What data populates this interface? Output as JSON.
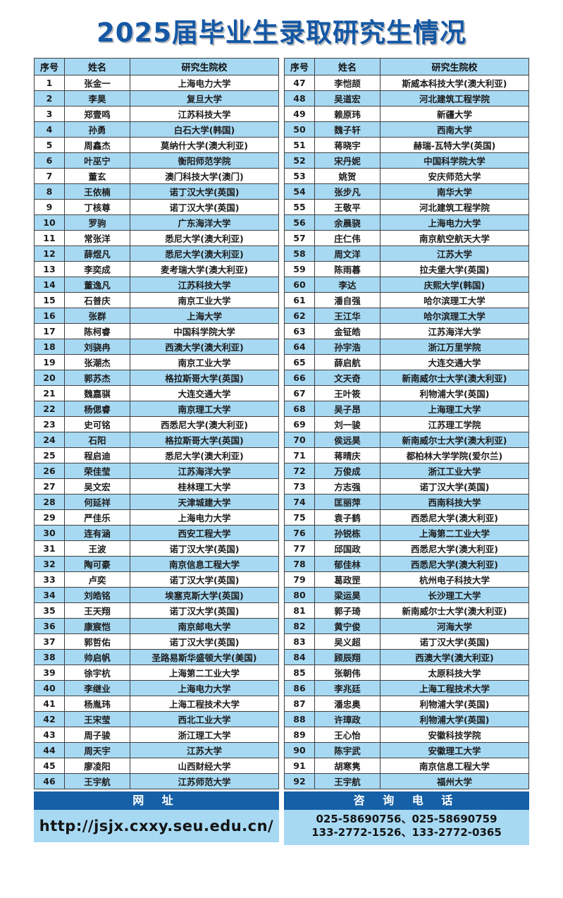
{
  "title": "2025届毕业生录取研究生情况",
  "table_columns": [
    "序号",
    "姓名",
    "研究生院校"
  ],
  "left_table_rows": [
    [
      "1",
      "张金一",
      "上海电力大学"
    ],
    [
      "2",
      "李昊",
      "复旦大学"
    ],
    [
      "3",
      "郑壹鸣",
      "江苏科技大学"
    ],
    [
      "4",
      "孙勇",
      "白石大学(韩国)"
    ],
    [
      "5",
      "周鑫杰",
      "莫纳什大学(澳大利亚)"
    ],
    [
      "6",
      "叶巫宁",
      "衡阳师范学院"
    ],
    [
      "7",
      "董玄",
      "澳门科技大学(澳门)"
    ],
    [
      "8",
      "王依楠",
      "诺丁汉大学(英国)"
    ],
    [
      "9",
      "丁核尊",
      "诺丁汉大学(英国)"
    ],
    [
      "10",
      "罗驹",
      "广东海洋大学"
    ],
    [
      "11",
      "常张洋",
      "悉尼大学(澳大利亚)"
    ],
    [
      "12",
      "薛煜凡",
      "悉尼大学(澳大利亚)"
    ],
    [
      "13",
      "李奕成",
      "麦考瑞大学(澳大利亚)"
    ],
    [
      "14",
      "董逸凡",
      "江苏科技大学"
    ],
    [
      "15",
      "石普庆",
      "南京工业大学"
    ],
    [
      "16",
      "张群",
      "上海大学"
    ],
    [
      "17",
      "陈柯睿",
      "中国科学院大学"
    ],
    [
      "18",
      "刘骁冉",
      "西澳大学(澳大利亚)"
    ],
    [
      "19",
      "张潮杰",
      "南京工业大学"
    ],
    [
      "20",
      "郭苏杰",
      "格拉斯哥大学(英国)"
    ],
    [
      "21",
      "魏嘉骐",
      "大连交通大学"
    ],
    [
      "22",
      "杨偲睿",
      "南京理工大学"
    ],
    [
      "23",
      "史可铭",
      "西悉尼大学(澳大利亚)"
    ],
    [
      "24",
      "石阳",
      "格拉斯哥大学(英国)"
    ],
    [
      "25",
      "程启迪",
      "悉尼大学(澳大利亚)"
    ],
    [
      "26",
      "荣佳莹",
      "江苏海洋大学"
    ],
    [
      "27",
      "吴文宏",
      "桂林理工大学"
    ],
    [
      "28",
      "何延祥",
      "天津城建大学"
    ],
    [
      "29",
      "严佳乐",
      "上海电力大学"
    ],
    [
      "30",
      "连有涵",
      "西安工程大学"
    ],
    [
      "31",
      "王波",
      "诺丁汉大学(英国)"
    ],
    [
      "32",
      "陶可豪",
      "南京信息工程大学"
    ],
    [
      "33",
      "卢奕",
      "诺丁汉大学(英国)"
    ],
    [
      "34",
      "刘皓铭",
      "埃塞克斯大学(英国)"
    ],
    [
      "35",
      "王天翔",
      "诺丁汉大学(英国)"
    ],
    [
      "36",
      "康宸恺",
      "南京邮电大学"
    ],
    [
      "37",
      "郭哲佑",
      "诺丁汉大学(英国)"
    ],
    [
      "38",
      "帅启帆",
      "圣路易斯华盛顿大学(美国)"
    ],
    [
      "39",
      "徐宇杭",
      "上海第二工业大学"
    ],
    [
      "40",
      "李继业",
      "上海电力大学"
    ],
    [
      "41",
      "杨胤玮",
      "上海工程技术大学"
    ],
    [
      "42",
      "王宋莹",
      "西北工业大学"
    ],
    [
      "43",
      "周子骏",
      "浙江理工大学"
    ],
    [
      "44",
      "周天宇",
      "江苏大学"
    ],
    [
      "45",
      "廖凌阳",
      "山西财经大学"
    ],
    [
      "46",
      "王宇航",
      "江苏师范大学"
    ]
  ],
  "right_table_rows": [
    [
      "47",
      "李恺颉",
      "斯威本科技大学(澳大利亚)"
    ],
    [
      "48",
      "吴道宏",
      "河北建筑工程学院"
    ],
    [
      "49",
      "赖原玮",
      "新疆大学"
    ],
    [
      "50",
      "魏子轩",
      "西南大学"
    ],
    [
      "51",
      "蒋晓宇",
      "赫瑞-瓦特大学(英国)"
    ],
    [
      "52",
      "宋丹妮",
      "中国科学院大学"
    ],
    [
      "53",
      "姚贺",
      "安庆师范大学"
    ],
    [
      "54",
      "张步凡",
      "南华大学"
    ],
    [
      "55",
      "王敬平",
      "河北建筑工程学院"
    ],
    [
      "56",
      "余晨骁",
      "上海电力大学"
    ],
    [
      "57",
      "庄仁伟",
      "南京航空航天大学"
    ],
    [
      "58",
      "周文洋",
      "江苏大学"
    ],
    [
      "59",
      "陈雨暮",
      "拉夫堡大学(英国)"
    ],
    [
      "60",
      "李达",
      "庆熙大学(韩国)"
    ],
    [
      "61",
      "潘自强",
      "哈尔滨理工大学"
    ],
    [
      "62",
      "王江华",
      "哈尔滨理工大学"
    ],
    [
      "63",
      "金钲皓",
      "江苏海洋大学"
    ],
    [
      "64",
      "孙宇浩",
      "浙江万里学院"
    ],
    [
      "65",
      "薛启航",
      "大连交通大学"
    ],
    [
      "66",
      "文天奇",
      "新南威尔士大学(澳大利亚)"
    ],
    [
      "67",
      "王叶筱",
      "利物浦大学(英国)"
    ],
    [
      "68",
      "吴子昂",
      "上海理工大学"
    ],
    [
      "69",
      "刘一骏",
      "江苏理工学院"
    ],
    [
      "70",
      "侯远昊",
      "新南威尔士大学(澳大利亚)"
    ],
    [
      "71",
      "蒋晴庆",
      "都柏林大学学院(爱尔兰)"
    ],
    [
      "72",
      "万俊成",
      "浙江工业大学"
    ],
    [
      "73",
      "方志强",
      "诺丁汉大学(英国)"
    ],
    [
      "74",
      "匡丽萍",
      "西南科技大学"
    ],
    [
      "75",
      "袁子鹤",
      "西悉尼大学(澳大利亚)"
    ],
    [
      "76",
      "孙锐栋",
      "上海第二工业大学"
    ],
    [
      "77",
      "邱国政",
      "西悉尼大学(澳大利亚)"
    ],
    [
      "78",
      "郁佳林",
      "西悉尼大学(澳大利亚)"
    ],
    [
      "79",
      "葛政罡",
      "杭州电子科技大学"
    ],
    [
      "80",
      "梁运昊",
      "长沙理工大学"
    ],
    [
      "81",
      "郭子琦",
      "新南威尔士大学(澳大利亚)"
    ],
    [
      "82",
      "黄宁俊",
      "河海大学"
    ],
    [
      "83",
      "吴义超",
      "诺丁汉大学(英国)"
    ],
    [
      "84",
      "顾辰翔",
      "西澳大学(澳大利亚)"
    ],
    [
      "85",
      "张朝伟",
      "太原科技大学"
    ],
    [
      "86",
      "李兆廷",
      "上海工程技术大学"
    ],
    [
      "87",
      "潘忠奥",
      "利物浦大学(英国)"
    ],
    [
      "88",
      "许璋政",
      "利物浦大学(英国)"
    ],
    [
      "89",
      "王心怡",
      "安徽科技学院"
    ],
    [
      "90",
      "陈宇武",
      "安徽理工大学"
    ],
    [
      "91",
      "胡寒隽",
      "南京信息工程大学"
    ],
    [
      "92",
      "王宇航",
      "福州大学"
    ]
  ],
  "footer": {
    "website_label": "网 址",
    "website_url": "http://jsjx.cxxy.seu.edu.cn/",
    "phone_label": "咨 询 电 话",
    "phone_line1": "025-58690756、025-58690759",
    "phone_line2": "133-2772-1526、133-2772-0365"
  },
  "colors": {
    "title_blue": "#1457A5",
    "header_bar_blue": "#1560A7",
    "light_blue_row": "#A7D9F3",
    "border_gray": "#404040"
  }
}
